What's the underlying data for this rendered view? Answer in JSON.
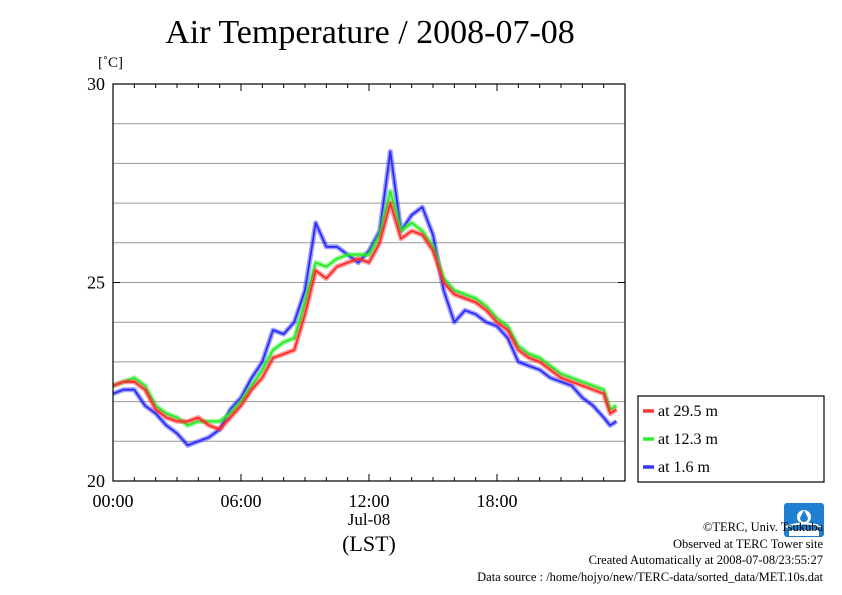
{
  "title": "Air Temperature / 2008-07-08",
  "unit_label": "[˚C]",
  "x_date_label": "Jul-08",
  "x_unit_label": "(LST)",
  "credits": {
    "copyright": "©TERC, Univ. Tsukuba",
    "site": "Observed at TERC Tower site",
    "created": "Created Automatically at 2008-07-08/23:55:27",
    "source": "Data source : /home/hojyo/new/TERC-data/sorted_data/MET.10s.dat"
  },
  "logo_text": "TERC",
  "chart_data": {
    "type": "line",
    "title": "Air Temperature / 2008-07-08",
    "ylabel": "[˚C]",
    "xlabel": "(LST)",
    "ylim": [
      20,
      30
    ],
    "xlim": [
      0,
      24
    ],
    "yticks": [
      "20",
      "25",
      "30"
    ],
    "ygrid_step": 1,
    "xticks": [
      "00:00",
      "06:00",
      "12:00",
      "18:00"
    ],
    "xtick_hours": [
      0,
      6,
      12,
      18
    ],
    "grid": true,
    "legend_position": "right",
    "colors": {
      "axis": "#000000",
      "grid": "#9a9a9a"
    },
    "x_hours": [
      0,
      0.5,
      1,
      1.5,
      2,
      2.5,
      3,
      3.5,
      4,
      4.5,
      5,
      5.5,
      6,
      6.5,
      7,
      7.5,
      8,
      8.5,
      9,
      9.5,
      10,
      10.5,
      11,
      11.5,
      12,
      12.5,
      13,
      13.5,
      14,
      14.5,
      15,
      15.5,
      16,
      16.5,
      17,
      17.5,
      18,
      18.5,
      19,
      19.5,
      20,
      20.5,
      21,
      21.5,
      22,
      22.5,
      23,
      23.3,
      23.6
    ],
    "series": [
      {
        "name": "at 29.5 m",
        "color": "#ff2a2a",
        "values": [
          22.4,
          22.5,
          22.5,
          22.3,
          21.8,
          21.6,
          21.5,
          21.5,
          21.6,
          21.4,
          21.3,
          21.6,
          21.9,
          22.3,
          22.6,
          23.1,
          23.2,
          23.3,
          24.2,
          25.3,
          25.1,
          25.4,
          25.5,
          25.6,
          25.5,
          26.0,
          27.0,
          26.1,
          26.3,
          26.2,
          25.8,
          25.0,
          24.7,
          24.6,
          24.5,
          24.3,
          24.0,
          23.8,
          23.3,
          23.1,
          23.0,
          22.8,
          22.6,
          22.5,
          22.4,
          22.3,
          22.2,
          21.7,
          21.8
        ]
      },
      {
        "name": "at 12.3 m",
        "color": "#22ee22",
        "values": [
          22.4,
          22.5,
          22.6,
          22.4,
          21.9,
          21.7,
          21.6,
          21.4,
          21.5,
          21.5,
          21.5,
          21.7,
          22.0,
          22.4,
          22.8,
          23.3,
          23.5,
          23.6,
          24.5,
          25.5,
          25.4,
          25.6,
          25.7,
          25.7,
          25.7,
          26.2,
          27.3,
          26.3,
          26.5,
          26.3,
          25.9,
          25.1,
          24.8,
          24.7,
          24.6,
          24.4,
          24.1,
          23.9,
          23.4,
          23.2,
          23.1,
          22.9,
          22.7,
          22.6,
          22.5,
          22.4,
          22.3,
          21.8,
          21.9
        ]
      },
      {
        "name": "at 1.6 m",
        "color": "#2a2aff",
        "values": [
          22.2,
          22.3,
          22.3,
          21.9,
          21.7,
          21.4,
          21.2,
          20.9,
          21.0,
          21.1,
          21.3,
          21.8,
          22.1,
          22.6,
          23.0,
          23.8,
          23.7,
          24.0,
          24.8,
          26.5,
          25.9,
          25.9,
          25.7,
          25.5,
          25.8,
          26.3,
          28.3,
          26.3,
          26.7,
          26.9,
          26.2,
          24.8,
          24.0,
          24.3,
          24.2,
          24.0,
          23.9,
          23.6,
          23.0,
          22.9,
          22.8,
          22.6,
          22.5,
          22.4,
          22.1,
          21.9,
          21.6,
          21.4,
          21.5
        ]
      }
    ]
  }
}
